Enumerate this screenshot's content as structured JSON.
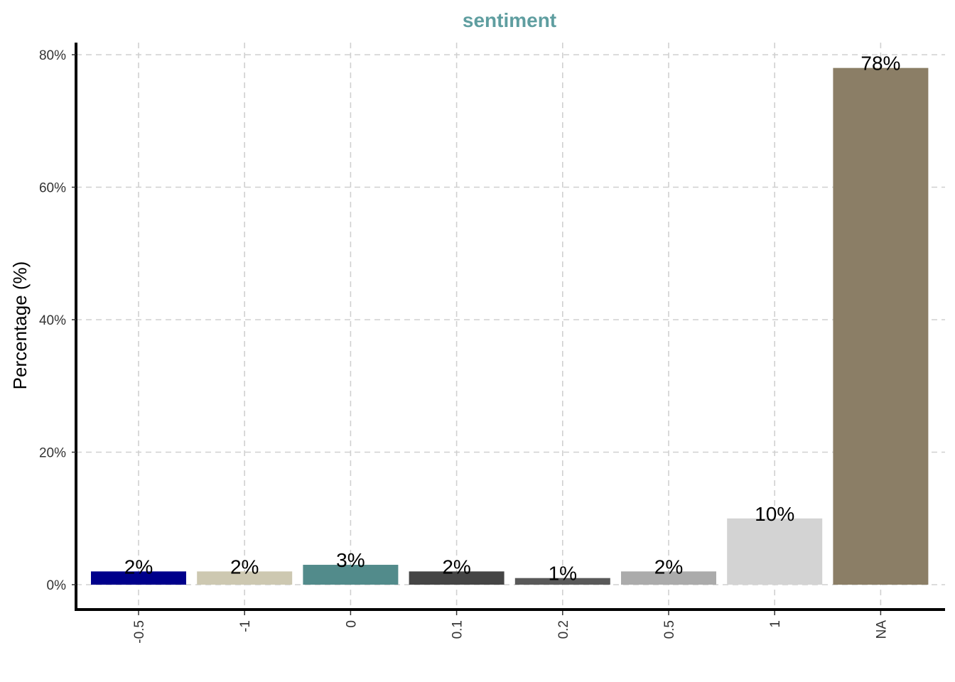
{
  "chart_data": {
    "type": "bar",
    "title": "sentiment",
    "xlabel": "",
    "ylabel": "Percentage (%)",
    "categories": [
      "-0.5",
      "-1",
      "0",
      "0.1",
      "0.2",
      "0.5",
      "1",
      "NA"
    ],
    "values": [
      2,
      2,
      3,
      2,
      1,
      2,
      10,
      78
    ],
    "data_labels": [
      "2%",
      "2%",
      "3%",
      "2%",
      "1%",
      "2%",
      "10%",
      "78%"
    ],
    "colors": [
      "#00008B",
      "#CDC8B1",
      "#528B8B",
      "#454545",
      "#595959",
      "#ABABAB",
      "#D3D3D3",
      "#8B7E66"
    ],
    "ylim": [
      0,
      80
    ],
    "yticks": [
      0,
      20,
      40,
      60,
      80
    ],
    "ytick_labels": [
      "0%",
      "20%",
      "40%",
      "60%",
      "80%"
    ],
    "grid": true,
    "legend": "none",
    "title_color": "#5F9EA0"
  }
}
